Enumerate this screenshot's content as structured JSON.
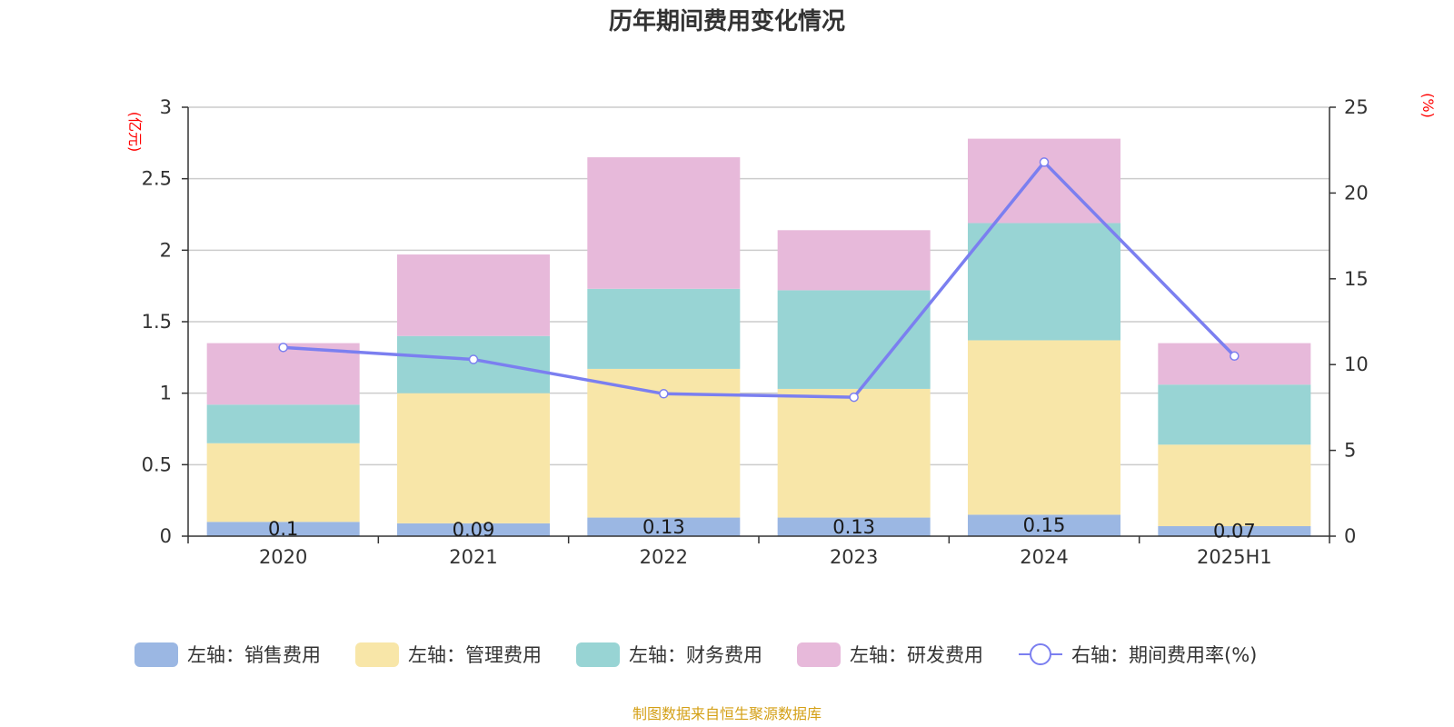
{
  "chart_data": {
    "type": "bar",
    "title": "历年期间费用变化情况",
    "left_unit": "(亿元)",
    "right_unit": "(%)",
    "categories": [
      "2020",
      "2021",
      "2022",
      "2023",
      "2024",
      "2025H1"
    ],
    "ylim_left": [
      0,
      3
    ],
    "left_ticks": [
      "0",
      "0.5",
      "1",
      "1.5",
      "2",
      "2.5",
      "3"
    ],
    "ylim_right": [
      0,
      25
    ],
    "right_ticks": [
      "0",
      "5",
      "10",
      "15",
      "20",
      "25"
    ],
    "grid": true,
    "stacked": true,
    "series": [
      {
        "name": "左轴：销售费用",
        "axis": "left",
        "kind": "bar",
        "color": "#9bb7e3",
        "values": [
          0.1,
          0.09,
          0.13,
          0.13,
          0.15,
          0.07
        ],
        "labels": [
          "0.1",
          "0.09",
          "0.13",
          "0.13",
          "0.15",
          "0.07"
        ]
      },
      {
        "name": "左轴：管理费用",
        "axis": "left",
        "kind": "bar",
        "color": "#f8e6a8",
        "values": [
          0.55,
          0.91,
          1.04,
          0.9,
          1.22,
          0.57
        ]
      },
      {
        "name": "左轴：财务费用",
        "axis": "left",
        "kind": "bar",
        "color": "#98d4d4",
        "values": [
          0.27,
          0.4,
          0.56,
          0.69,
          0.82,
          0.42
        ]
      },
      {
        "name": "左轴：研发费用",
        "axis": "left",
        "kind": "bar",
        "color": "#e7b9da",
        "values": [
          0.43,
          0.57,
          0.92,
          0.42,
          0.59,
          0.29
        ]
      },
      {
        "name": "右轴：期间费用率(%)",
        "axis": "right",
        "kind": "line",
        "color": "#7b7ff0",
        "values": [
          11.0,
          10.3,
          8.3,
          8.1,
          21.8,
          10.5
        ]
      }
    ],
    "legend_position": "bottom",
    "source": "制图数据来自恒生聚源数据库"
  }
}
